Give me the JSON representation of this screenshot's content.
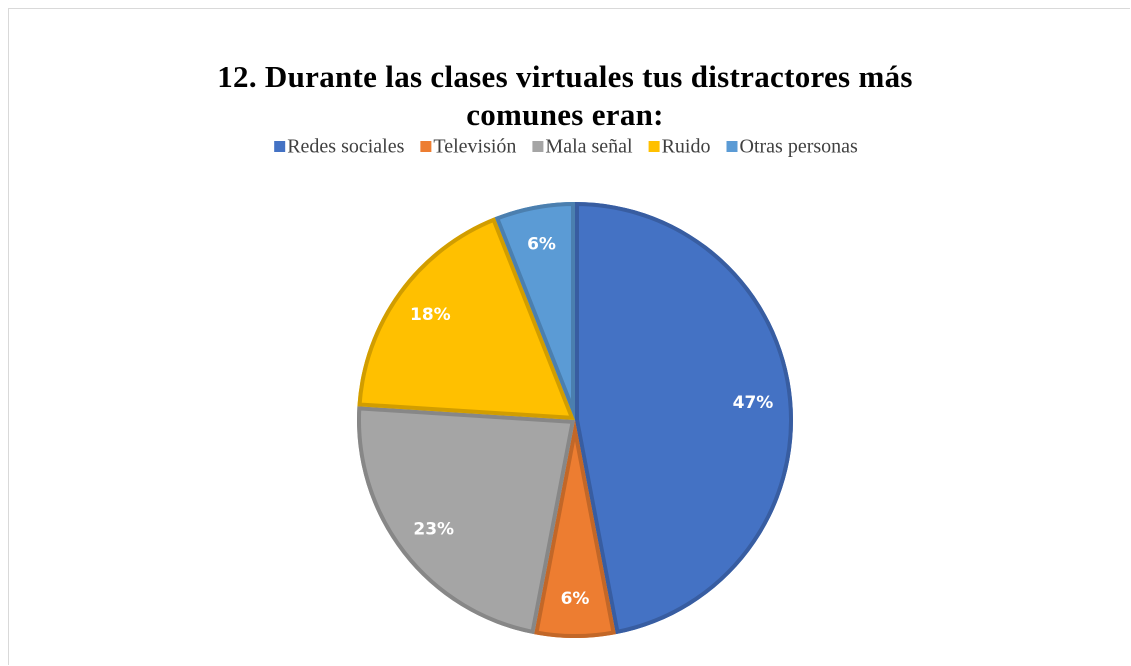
{
  "chart_data": {
    "type": "pie",
    "title": "12. Durante las clases virtuales tus distractores más comunes eran:",
    "categories": [
      "Redes sociales",
      "Televisión",
      "Mala señal",
      "Ruido",
      "Otras personas"
    ],
    "values": [
      47,
      6,
      23,
      18,
      6
    ],
    "value_labels": [
      "47%",
      "6%",
      "23%",
      "18%",
      "6%"
    ],
    "colors": [
      "#4472c4",
      "#ed7d31",
      "#a5a5a5",
      "#ffc000",
      "#5b9bd5"
    ],
    "legend": "top"
  }
}
